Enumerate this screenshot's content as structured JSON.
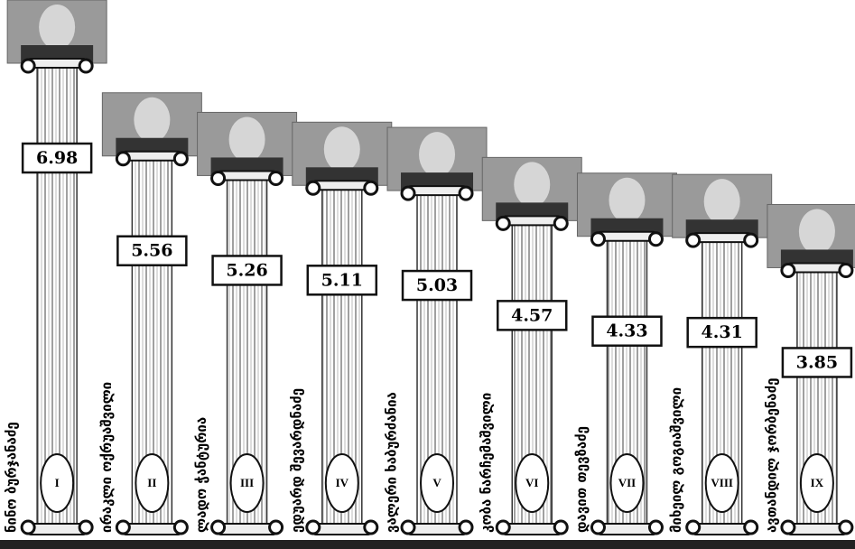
{
  "chart_data": {
    "type": "bar",
    "categories": [
      "ნინო ბურჯანაძე",
      "ირაკლი ოქრუაშვილი",
      "ლადო ჭანტურია",
      "ედუარდ შევარდნაძე",
      "ვალერი ხაბურძანია",
      "კობა ნარჩემაშვილი",
      "დავით თევზაძე",
      "მიხეილ გოგიაშვილი",
      "ავთანდილ ჯორბენაძე"
    ],
    "ranks": [
      "I",
      "II",
      "III",
      "IV",
      "V",
      "VI",
      "VII",
      "VIII",
      "IX"
    ],
    "values": [
      6.98,
      5.56,
      5.26,
      5.11,
      5.03,
      4.57,
      4.33,
      4.31,
      3.85
    ],
    "color": "#8a8a8a"
  }
}
